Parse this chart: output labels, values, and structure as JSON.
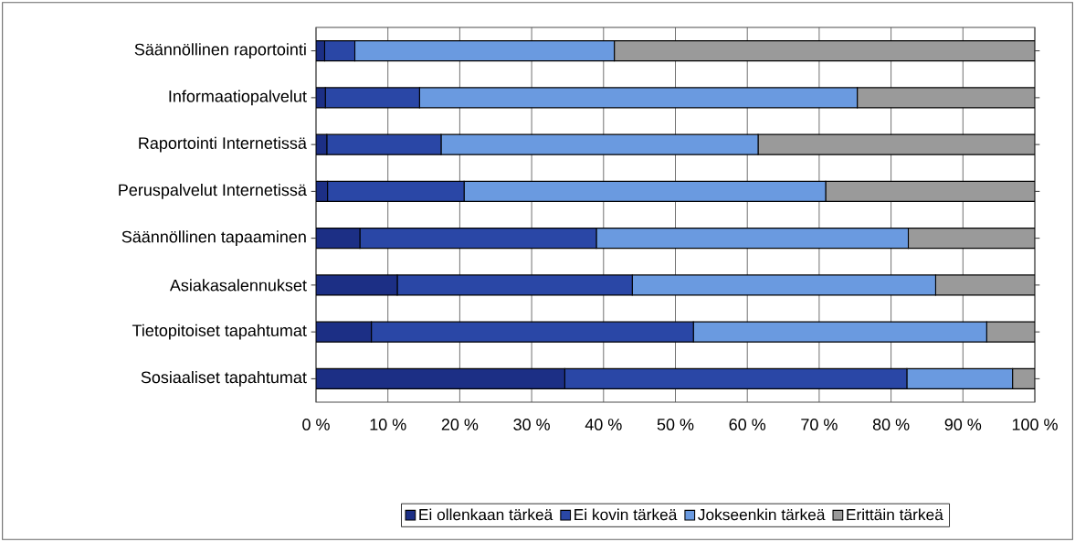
{
  "chart_data": {
    "type": "bar",
    "orientation": "horizontal",
    "stacked": true,
    "categories": [
      "Säännöllinen raportointi",
      "Informaatiopalvelut",
      "Raportointi Internetissä",
      "Peruspalvelut Internetissä",
      "Säännöllinen tapaaminen",
      "Asiakasalennukset",
      "Tietopitoiset tapahtumat",
      "Sosiaaliset tapahtumat"
    ],
    "series": [
      {
        "name": "Ei ollenkaan tärkeä",
        "color": "#1c2f85",
        "values": [
          1.2,
          1.3,
          1.5,
          1.6,
          6.1,
          11.3,
          7.7,
          34.6
        ]
      },
      {
        "name": "Ei kovin tärkeä",
        "color": "#2a47a6",
        "values": [
          4.2,
          13.1,
          15.9,
          19.0,
          32.9,
          32.7,
          44.8,
          47.6
        ]
      },
      {
        "name": "Jokseenkin tärkeä",
        "color": "#6a9ae0",
        "values": [
          36.1,
          60.9,
          44.1,
          50.3,
          43.4,
          42.2,
          40.8,
          14.7
        ]
      },
      {
        "name": "Erittäin tärkeä",
        "color": "#9a9a9a",
        "values": [
          58.5,
          24.7,
          38.5,
          29.1,
          17.6,
          13.8,
          6.7,
          3.1
        ]
      }
    ],
    "xlim": [
      0,
      100
    ],
    "xticks": [
      {
        "value": 0,
        "label": "0 %"
      },
      {
        "value": 10,
        "label": "10 %"
      },
      {
        "value": 20,
        "label": "20 %"
      },
      {
        "value": 30,
        "label": "30 %"
      },
      {
        "value": 40,
        "label": "40 %"
      },
      {
        "value": 50,
        "label": "50 %"
      },
      {
        "value": 60,
        "label": "60 %"
      },
      {
        "value": 70,
        "label": "70 %"
      },
      {
        "value": 80,
        "label": "80 %"
      },
      {
        "value": 90,
        "label": "90 %"
      },
      {
        "value": 100,
        "label": "100 %"
      }
    ],
    "grid": "x",
    "legend": "bottom"
  }
}
